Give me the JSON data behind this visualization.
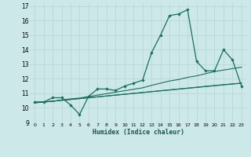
{
  "title": "",
  "xlabel": "Humidex (Indice chaleur)",
  "ylabel": "",
  "bg_color": "#cde8e8",
  "grid_color": "#b8d8d8",
  "line_color": "#1a6e5e",
  "xlim": [
    -0.5,
    23.5
  ],
  "ylim": [
    9,
    17.2
  ],
  "yticks": [
    9,
    10,
    11,
    12,
    13,
    14,
    15,
    16,
    17
  ],
  "xticks": [
    0,
    1,
    2,
    3,
    4,
    5,
    6,
    7,
    8,
    9,
    10,
    11,
    12,
    13,
    14,
    15,
    16,
    17,
    18,
    19,
    20,
    21,
    22,
    23
  ],
  "xtick_labels": [
    "0",
    "1",
    "2",
    "3",
    "4",
    "5",
    "6",
    "7",
    "8",
    "9",
    "10",
    "11",
    "12",
    "13",
    "14",
    "15",
    "16",
    "17",
    "18",
    "19",
    "20",
    "21",
    "22",
    "23"
  ],
  "line1_x": [
    0,
    1,
    2,
    3,
    4,
    5,
    6,
    7,
    8,
    9,
    10,
    11,
    12,
    13,
    14,
    15,
    16,
    17,
    18,
    19,
    20,
    21,
    22,
    23
  ],
  "line1_y": [
    10.4,
    10.4,
    10.7,
    10.7,
    10.2,
    9.55,
    10.8,
    11.3,
    11.3,
    11.2,
    11.5,
    11.7,
    11.9,
    13.8,
    15.0,
    16.35,
    16.45,
    16.75,
    13.2,
    12.55,
    12.55,
    14.0,
    13.3,
    11.5
  ],
  "line2_x": [
    0,
    1,
    2,
    3,
    4,
    5,
    6,
    7,
    8,
    9,
    10,
    11,
    12,
    13,
    14,
    15,
    16,
    17,
    18,
    19,
    20,
    21,
    22,
    23
  ],
  "line2_y": [
    10.4,
    10.42,
    10.44,
    10.55,
    10.62,
    10.68,
    10.78,
    10.88,
    10.98,
    11.08,
    11.18,
    11.28,
    11.38,
    11.55,
    11.7,
    11.85,
    11.95,
    12.1,
    12.2,
    12.35,
    12.5,
    12.6,
    12.7,
    12.8
  ],
  "line3_x": [
    0,
    1,
    2,
    3,
    4,
    5,
    6,
    7,
    8,
    9,
    10,
    11,
    12,
    13,
    14,
    15,
    16,
    17,
    18,
    19,
    20,
    21,
    22,
    23
  ],
  "line3_y": [
    10.35,
    10.4,
    10.46,
    10.52,
    10.58,
    10.64,
    10.7,
    10.76,
    10.82,
    10.88,
    10.94,
    11.0,
    11.06,
    11.12,
    11.18,
    11.24,
    11.3,
    11.36,
    11.42,
    11.48,
    11.54,
    11.6,
    11.65,
    11.7
  ],
  "line4_x": [
    0,
    23
  ],
  "line4_y": [
    10.35,
    11.7
  ]
}
